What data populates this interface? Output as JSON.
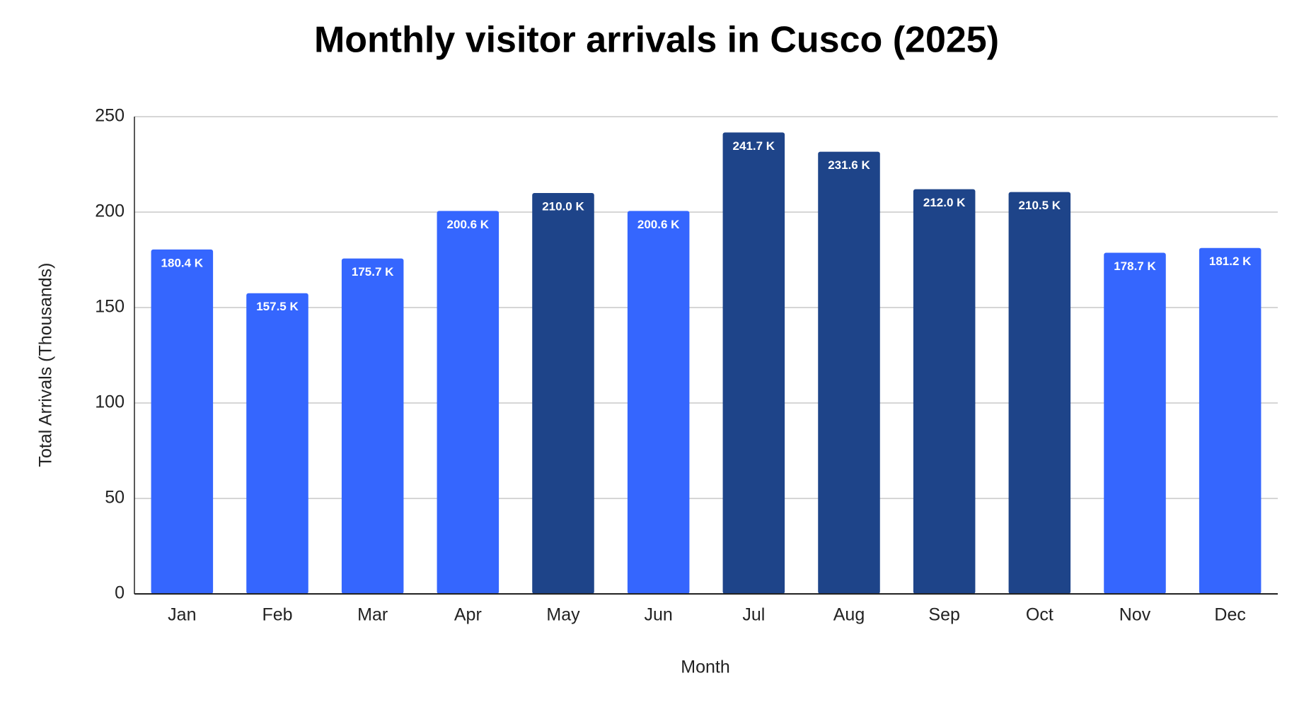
{
  "chart_data": {
    "type": "bar",
    "title": "Monthly visitor arrivals in Cusco (2025)",
    "x_label": "Month",
    "y_label": "Total Arrivals (Thousands)",
    "categories": [
      "Jan",
      "Feb",
      "Mar",
      "Apr",
      "May",
      "Jun",
      "Jul",
      "Aug",
      "Sep",
      "Oct",
      "Nov",
      "Dec"
    ],
    "values": [
      180.4,
      157.5,
      175.7,
      200.6,
      210.0,
      200.6,
      241.7,
      231.6,
      212.0,
      210.5,
      178.7,
      181.2
    ],
    "value_labels": [
      "180.4 K",
      "157.5 K",
      "175.7 K",
      "200.6 K",
      "210.0 K",
      "200.6 K",
      "241.7 K",
      "231.6 K",
      "212.0 K",
      "210.5 K",
      "178.7 K",
      "181.2 K"
    ],
    "colors": [
      "#3566fe",
      "#3566fe",
      "#3566fe",
      "#3566fe",
      "#1e4489",
      "#3566fe",
      "#1e4489",
      "#1e4489",
      "#1e4489",
      "#1e4489",
      "#3566fe",
      "#3566fe"
    ],
    "ylim": [
      0,
      250
    ],
    "yticks": [
      0,
      50,
      100,
      150,
      200,
      250
    ],
    "grid": true
  }
}
